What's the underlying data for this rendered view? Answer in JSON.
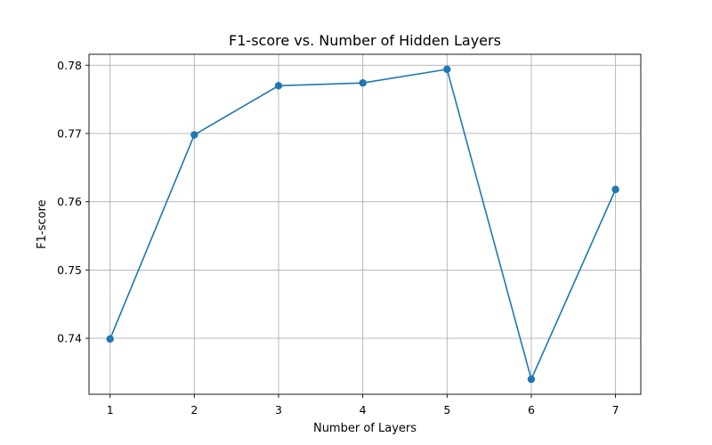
{
  "chart_data": {
    "type": "line",
    "title": "F1-score vs. Number of Hidden Layers",
    "xlabel": "Number of Layers",
    "ylabel": "F1-score",
    "x": [
      1,
      2,
      3,
      4,
      5,
      6,
      7
    ],
    "series": [
      {
        "values": [
          0.7399,
          0.7698,
          0.777,
          0.7774,
          0.7794,
          0.734,
          0.7618
        ],
        "color": "#1f77b4",
        "marker": "circle"
      }
    ],
    "xticks": [
      "1",
      "2",
      "3",
      "4",
      "5",
      "6",
      "7"
    ],
    "yticks": [
      "0.74",
      "0.75",
      "0.76",
      "0.77",
      "0.78"
    ],
    "ytick_values": [
      0.74,
      0.75,
      0.76,
      0.77,
      0.78
    ],
    "xlim": [
      0.75,
      7.3
    ],
    "ylim": [
      0.7318,
      0.7816
    ],
    "grid": true
  }
}
